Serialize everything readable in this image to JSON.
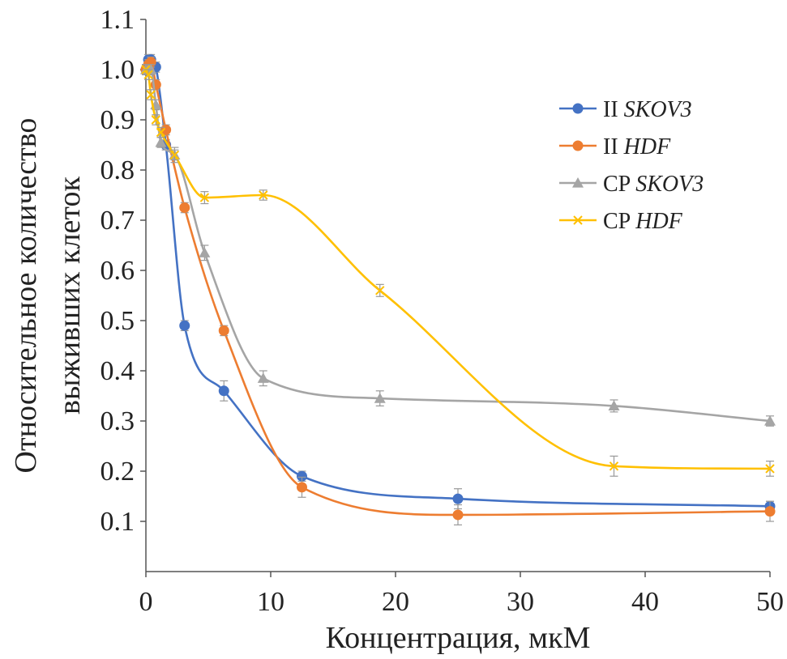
{
  "chart_data": {
    "type": "line",
    "xlabel": "Концентрация, мкМ",
    "ylabel_lines": [
      "Относительное количество",
      "выживших клеток"
    ],
    "xlim": [
      0,
      50
    ],
    "ylim": [
      0,
      1.1
    ],
    "x_ticks": [
      "0",
      "10",
      "20",
      "30",
      "40",
      "50"
    ],
    "x_tick_values": [
      0,
      10,
      20,
      30,
      40,
      50
    ],
    "y_ticks": [
      "0.1",
      "0.2",
      "0.3",
      "0.4",
      "0.5",
      "0.6",
      "0.7",
      "0.8",
      "0.9",
      "1.0",
      "1.1"
    ],
    "y_tick_values": [
      0.1,
      0.2,
      0.3,
      0.4,
      0.5,
      0.6,
      0.7,
      0.8,
      0.9,
      1.0,
      1.1
    ],
    "grid": false,
    "legend_position": "top-right",
    "series": [
      {
        "name": "II SKOV3",
        "label_prefix": "II ",
        "label_italic": "SKOV3",
        "color": "#4472C4",
        "marker": "circle",
        "x": [
          0.0,
          0.2,
          0.4,
          0.8,
          1.6,
          3.1,
          6.25,
          12.5,
          25.0,
          50.0
        ],
        "y": [
          1.0,
          1.02,
          1.02,
          1.005,
          0.85,
          0.49,
          0.36,
          0.19,
          0.145,
          0.13
        ],
        "err": [
          0.01,
          0.01,
          0.01,
          0.01,
          0.01,
          0.01,
          0.02,
          0.01,
          0.02,
          0.01
        ]
      },
      {
        "name": "II HDF",
        "label_prefix": "II ",
        "label_italic": "HDF",
        "color": "#ED7D31",
        "marker": "circle",
        "x": [
          0.0,
          0.2,
          0.4,
          0.8,
          1.6,
          3.1,
          6.25,
          12.5,
          25.0,
          50.0
        ],
        "y": [
          1.0,
          1.01,
          1.015,
          0.97,
          0.88,
          0.725,
          0.48,
          0.168,
          0.113,
          0.12
        ],
        "err": [
          0.01,
          0.01,
          0.01,
          0.01,
          0.01,
          0.01,
          0.01,
          0.02,
          0.02,
          0.02
        ]
      },
      {
        "name": "CP SKOV3",
        "label_prefix": "CP ",
        "label_italic": "SKOV3",
        "color": "#A5A5A5",
        "marker": "triangle",
        "x": [
          0.0,
          0.2,
          0.4,
          0.8,
          1.2,
          2.3,
          4.7,
          9.4,
          18.75,
          37.5,
          50.0
        ],
        "y": [
          1.0,
          1.0,
          1.0,
          0.93,
          0.855,
          0.83,
          0.635,
          0.385,
          0.345,
          0.33,
          0.3
        ],
        "err": [
          0.01,
          0.01,
          0.01,
          0.01,
          0.01,
          0.015,
          0.015,
          0.015,
          0.015,
          0.012,
          0.01
        ]
      },
      {
        "name": "CP HDF",
        "label_prefix": "CP ",
        "label_italic": "HDF",
        "color": "#FFC000",
        "marker": "x",
        "x": [
          0.0,
          0.2,
          0.4,
          0.8,
          1.2,
          2.3,
          4.7,
          9.4,
          18.75,
          37.5,
          50.0
        ],
        "y": [
          1.0,
          0.99,
          0.95,
          0.9,
          0.875,
          0.83,
          0.745,
          0.75,
          0.56,
          0.21,
          0.205
        ],
        "err": [
          0.01,
          0.01,
          0.01,
          0.01,
          0.01,
          0.01,
          0.012,
          0.01,
          0.012,
          0.02,
          0.015
        ]
      }
    ]
  }
}
